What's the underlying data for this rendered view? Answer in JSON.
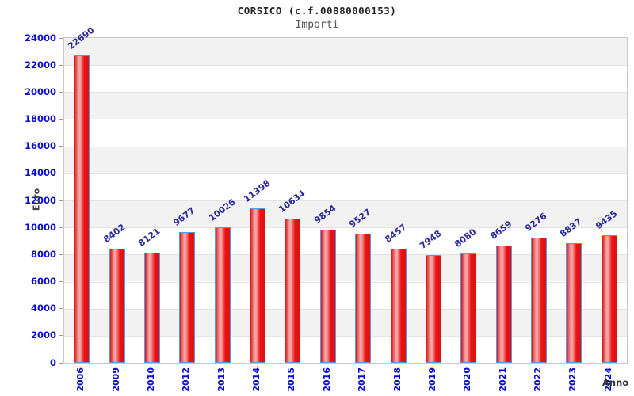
{
  "header": {
    "title": "CORSICO (c.f.00880000153)",
    "subtitle": "Importi"
  },
  "chart_data": {
    "type": "bar",
    "title": "CORSICO (c.f.00880000153)",
    "subtitle": "Importi",
    "categories": [
      "2006",
      "2009",
      "2010",
      "2012",
      "2013",
      "2014",
      "2015",
      "2016",
      "2017",
      "2018",
      "2019",
      "2020",
      "2021",
      "2022",
      "2023",
      "2024"
    ],
    "values": [
      22690,
      8402,
      8121,
      9677,
      10026,
      11398,
      10634,
      9854,
      9527,
      8457,
      7948,
      8080,
      8659,
      9276,
      8837,
      9435
    ],
    "xlabel": "Anno",
    "ylabel": "Euro",
    "ylim": [
      0,
      24000
    ],
    "ytick_step": 2000,
    "legend": "none",
    "grid": "horizontal alternating bands",
    "value_labels_rotated": true,
    "colors": {
      "bar_fill": "#ee1111",
      "bar_fill_dark": "#d61414",
      "bar_highlight": "#f4a6a6",
      "bar_border": "#5599ee",
      "axis_tick_label": "#0a0ad2",
      "value_label": "#2b2b9c",
      "band_light": "#ffffff",
      "band_dark": "#f2f2f2",
      "gridline": "#e3e3e3"
    }
  }
}
